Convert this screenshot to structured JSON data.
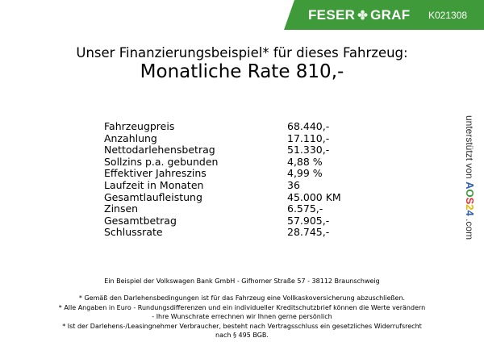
{
  "header": {
    "brand_left": "FESER",
    "brand_right": "GRAF",
    "code": "K021308",
    "color": "#3f9b3a"
  },
  "title": {
    "line1": "Unser Finanzierungsbeispiel* für dieses Fahrzeug:",
    "line2": "Monatliche Rate 810,-"
  },
  "rows": [
    {
      "label": "Fahrzeugpreis",
      "value": "68.440,-"
    },
    {
      "label": "Anzahlung",
      "value": "17.110,-"
    },
    {
      "label": "Nettodarlehensbetrag",
      "value": "51.330,-"
    },
    {
      "label": "Sollzins p.a. gebunden",
      "value": "4,88 %"
    },
    {
      "label": "Effektiver Jahreszins",
      "value": "4,99 %"
    },
    {
      "label": "Laufzeit in Monaten",
      "value": "36"
    },
    {
      "label": "Gesamtlaufleistung",
      "value": "45.000 KM"
    },
    {
      "label": "Zinsen",
      "value": "6.575,-"
    },
    {
      "label": "Gesamtbetrag",
      "value": "57.905,-"
    },
    {
      "label": "Schlussrate",
      "value": "28.745,-"
    }
  ],
  "side": {
    "text": "unterstützt von",
    "logo": [
      "A",
      "O",
      "S",
      "2",
      "4"
    ],
    "suffix": ".com"
  },
  "footer": {
    "bank": "Ein Beispiel der Volkswagen Bank GmbH - Gifhorner Straße 57 - 38112 Braunschweig",
    "note1": "* Gemäß den Darlehensbedingungen ist für das Fahrzeug eine Vollkaskoversicherung abzuschließen.",
    "note2a": "* Alle Angaben in Euro - Rundungsdifferenzen und ein individueller Kreditschutzbrief können die Werte verändern",
    "note2b": "- Ihre Wunschrate errechnen wir Ihnen gerne persönlich",
    "note3a": "* Ist der Darlehens-/Leasingnehmer Verbraucher, besteht nach Vertragsschluss ein gesetzliches Widerrufsrecht",
    "note3b": "nach § 495 BGB."
  }
}
